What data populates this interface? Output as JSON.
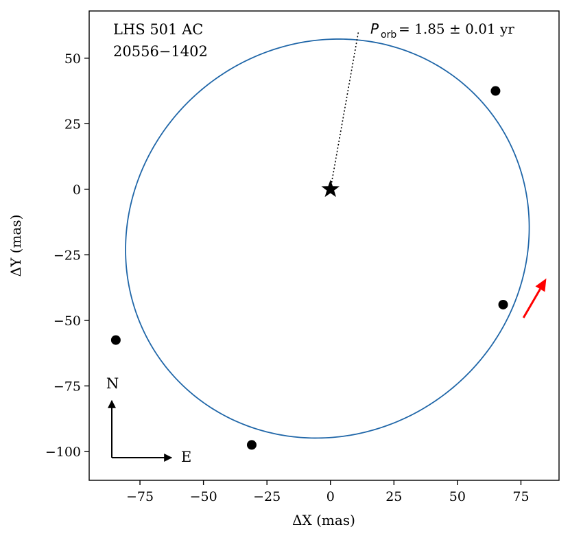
{
  "chart_data": {
    "type": "scatter",
    "title": "",
    "annotations": {
      "system_name": "LHS 501 AC",
      "system_id": "20556−1402",
      "period_symbol": "P",
      "period_subscript": "orb",
      "period_value": "=  1.85 ±  0.01 yr"
    },
    "xlabel": "ΔX  (mas)",
    "ylabel": "ΔY  (mas)",
    "xlim": [
      -95,
      90
    ],
    "ylim": [
      -111,
      68
    ],
    "xticks": [
      -75,
      -50,
      -25,
      0,
      25,
      50,
      75
    ],
    "yticks": [
      -100,
      -75,
      -50,
      -25,
      0,
      25,
      50
    ],
    "grid": false,
    "orbit": {
      "color": "#1f66a8",
      "center": [
        -1.2,
        -18.8
      ],
      "semi_axes": [
        80.5,
        75.0
      ],
      "rotation_deg": 26
    },
    "primary_star": {
      "x": 0,
      "y": 0
    },
    "periastron_line": {
      "from": [
        0,
        0
      ],
      "to": [
        11,
        60
      ]
    },
    "observations": [
      {
        "x": 65,
        "y": 37.5
      },
      {
        "x": 68,
        "y": -44
      },
      {
        "x": -84.5,
        "y": -57.5
      },
      {
        "x": -31,
        "y": -97.5
      }
    ],
    "motion_arrow": {
      "color": "#ff0000",
      "from": [
        76,
        -49
      ],
      "to": [
        85,
        -34
      ]
    },
    "compass": {
      "north_label": "N",
      "east_label": "E"
    }
  }
}
